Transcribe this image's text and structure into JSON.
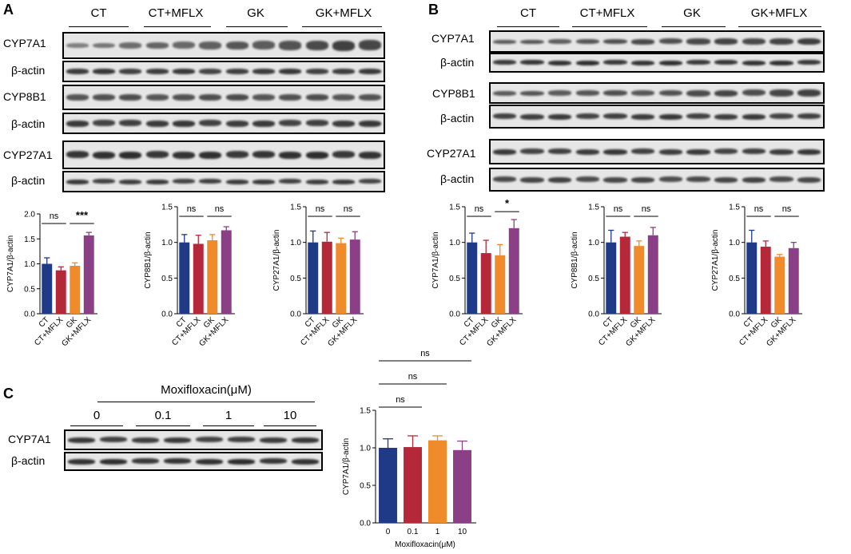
{
  "colors": {
    "ct": "#1f3a86",
    "ct_mflx": "#b5283a",
    "gk": "#ef8b2a",
    "gk_mflx": "#8b3f86",
    "blot_bg": "#e6e6e6",
    "band": "#202020"
  },
  "panels": {
    "A": {
      "letter": "A",
      "groups": [
        "CT",
        "CT+MFLX",
        "GK",
        "GK+MFLX"
      ],
      "rows": [
        "CYP7A1",
        "β-actin",
        "CYP8B1",
        "β-actin",
        "CYP27A1",
        "β-actin"
      ]
    },
    "B": {
      "letter": "B",
      "groups": [
        "CT",
        "CT+MFLX",
        "GK",
        "GK+MFLX"
      ],
      "rows": [
        "CYP7A1",
        "β-actin",
        "CYP8B1",
        "β-actin",
        "CYP27A1",
        "β-actin"
      ]
    },
    "C": {
      "letter": "C",
      "treatment": "Moxifloxacin(μM)",
      "doses": [
        "0",
        "0.1",
        "1",
        "10"
      ],
      "rows": [
        "CYP7A1",
        "β-actin"
      ]
    }
  },
  "chart_data": [
    {
      "id": "A1",
      "type": "bar",
      "categories": [
        "CT",
        "CT+MFLX",
        "GK",
        "GK+MFLX"
      ],
      "values": [
        1.0,
        0.87,
        0.96,
        1.57
      ],
      "errors": [
        0.12,
        0.07,
        0.06,
        0.06
      ],
      "ylabel": "CYP7A1/β-actin",
      "ylim": [
        0,
        2.0
      ],
      "yticks": [
        "0.0",
        "0.5",
        "1.0",
        "1.5",
        "2.0"
      ],
      "significance": [
        {
          "pair": [
            0,
            1
          ],
          "label": "ns"
        },
        {
          "pair": [
            2,
            3
          ],
          "label": "***"
        }
      ]
    },
    {
      "id": "A2",
      "type": "bar",
      "categories": [
        "CT",
        "CT+MFLX",
        "GK",
        "GK+MFLX"
      ],
      "values": [
        1.0,
        0.98,
        1.03,
        1.17
      ],
      "errors": [
        0.11,
        0.12,
        0.08,
        0.05
      ],
      "ylabel": "CYP8B1/β-actin",
      "ylim": [
        0,
        1.5
      ],
      "yticks": [
        "0.0",
        "0.5",
        "1.0",
        "1.5"
      ],
      "significance": [
        {
          "pair": [
            0,
            1
          ],
          "label": "ns"
        },
        {
          "pair": [
            2,
            3
          ],
          "label": "ns"
        }
      ]
    },
    {
      "id": "A3",
      "type": "bar",
      "categories": [
        "CT",
        "CT+MFLX",
        "GK",
        "GK+MFLX"
      ],
      "values": [
        1.0,
        1.01,
        0.99,
        1.04
      ],
      "errors": [
        0.16,
        0.13,
        0.07,
        0.11
      ],
      "ylabel": "CYP27A1/β-actin",
      "ylim": [
        0,
        1.5
      ],
      "yticks": [
        "0.0",
        "0.5",
        "1.0",
        "1.5"
      ],
      "significance": [
        {
          "pair": [
            0,
            1
          ],
          "label": "ns"
        },
        {
          "pair": [
            2,
            3
          ],
          "label": "ns"
        }
      ]
    },
    {
      "id": "B1",
      "type": "bar",
      "categories": [
        "CT",
        "CT+MFLX",
        "GK",
        "GK+MFLX"
      ],
      "values": [
        1.0,
        0.85,
        0.82,
        1.2
      ],
      "errors": [
        0.13,
        0.18,
        0.15,
        0.12
      ],
      "ylabel": "CYP7A1/β-actin",
      "ylim": [
        0,
        1.5
      ],
      "yticks": [
        "0.0",
        "0.5",
        "1.0",
        "1.5"
      ],
      "significance": [
        {
          "pair": [
            0,
            1
          ],
          "label": "ns"
        },
        {
          "pair": [
            2,
            3
          ],
          "label": "*"
        }
      ]
    },
    {
      "id": "B2",
      "type": "bar",
      "categories": [
        "CT",
        "CT+MFLX",
        "GK",
        "GK+MFLX"
      ],
      "values": [
        1.0,
        1.08,
        0.95,
        1.1
      ],
      "errors": [
        0.17,
        0.06,
        0.07,
        0.11
      ],
      "ylabel": "CYP8B1/β-actin",
      "ylim": [
        0,
        1.5
      ],
      "yticks": [
        "0.0",
        "0.5",
        "1.0",
        "1.5"
      ],
      "significance": [
        {
          "pair": [
            0,
            1
          ],
          "label": "ns"
        },
        {
          "pair": [
            2,
            3
          ],
          "label": "ns"
        }
      ]
    },
    {
      "id": "B3",
      "type": "bar",
      "categories": [
        "CT",
        "CT+MFLX",
        "GK",
        "GK+MFLX"
      ],
      "values": [
        1.0,
        0.94,
        0.8,
        0.92
      ],
      "errors": [
        0.17,
        0.08,
        0.03,
        0.08
      ],
      "ylabel": "CYP27A1/β-actin",
      "ylim": [
        0,
        1.5
      ],
      "yticks": [
        "0.0",
        "0.5",
        "1.0",
        "1.5"
      ],
      "significance": [
        {
          "pair": [
            0,
            1
          ],
          "label": "ns"
        },
        {
          "pair": [
            2,
            3
          ],
          "label": "ns"
        }
      ]
    },
    {
      "id": "C1",
      "type": "bar",
      "categories": [
        "0",
        "0.1",
        "1",
        "10"
      ],
      "values": [
        1.0,
        1.01,
        1.1,
        0.97
      ],
      "errors": [
        0.12,
        0.15,
        0.06,
        0.12
      ],
      "ylabel": "CYP7A1/β-actin",
      "xlabel": "Moxifloxacin(μM)",
      "ylim": [
        0,
        1.5
      ],
      "yticks": [
        "0.0",
        "0.5",
        "1.0",
        "1.5"
      ],
      "significance": [
        {
          "pair": [
            0,
            1
          ],
          "label": "ns"
        },
        {
          "pair": [
            0,
            2
          ],
          "label": "ns"
        },
        {
          "pair": [
            0,
            3
          ],
          "label": "ns"
        }
      ]
    }
  ]
}
